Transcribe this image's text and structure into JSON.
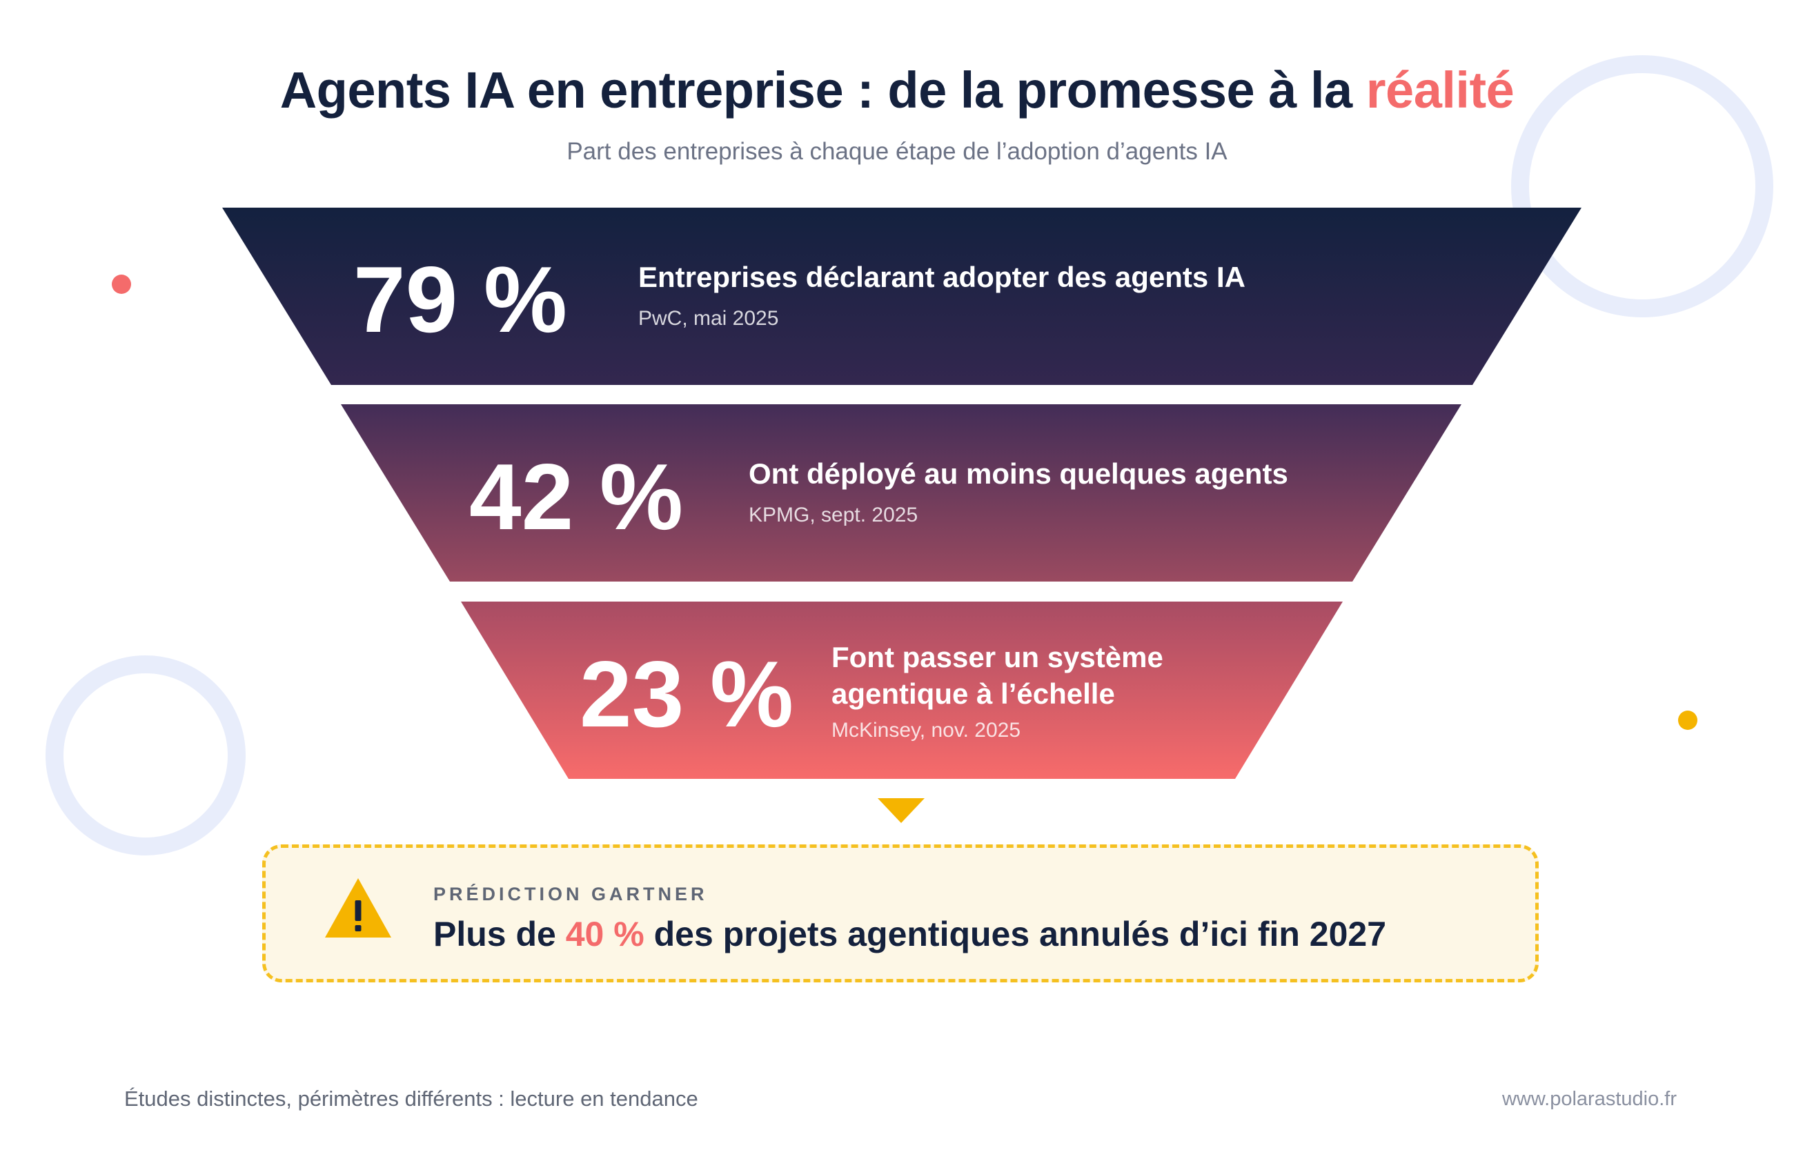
{
  "header": {
    "title_main": "Agents IA en entreprise : de la promesse à la ",
    "title_accent": "réalité",
    "subtitle": "Part des entreprises à chaque étape de l’adoption d’agents IA"
  },
  "funnel": {
    "stages": [
      {
        "value": 79,
        "value_label": "79 %",
        "label": "Entreprises déclarant adopter des agents IA",
        "source": "PwC, mai 2025"
      },
      {
        "value": 42,
        "value_label": "42 %",
        "label": "Ont déployé au moins quelques agents",
        "source": "KPMG, sept. 2025"
      },
      {
        "value": 23,
        "value_label": "23 %",
        "label_line1": "Font passer un système",
        "label_line2": "agentique à l’échelle",
        "source": "McKinsey, nov. 2025"
      }
    ],
    "colors": {
      "top": "#13213f",
      "middle": "#4a2d57",
      "bottom": "#f46b6b",
      "arrow": "#f5b400"
    }
  },
  "prediction": {
    "icon": "warning-icon",
    "kicker": "PRÉDICTION GARTNER",
    "text_before": "Plus de ",
    "text_accent": "40 %",
    "text_after": " des projets agentiques annulés d’ici fin 2027"
  },
  "footer": {
    "note": "Études distinctes, périmètres différents : lecture en tendance",
    "url": "www.polarastudio.fr"
  }
}
